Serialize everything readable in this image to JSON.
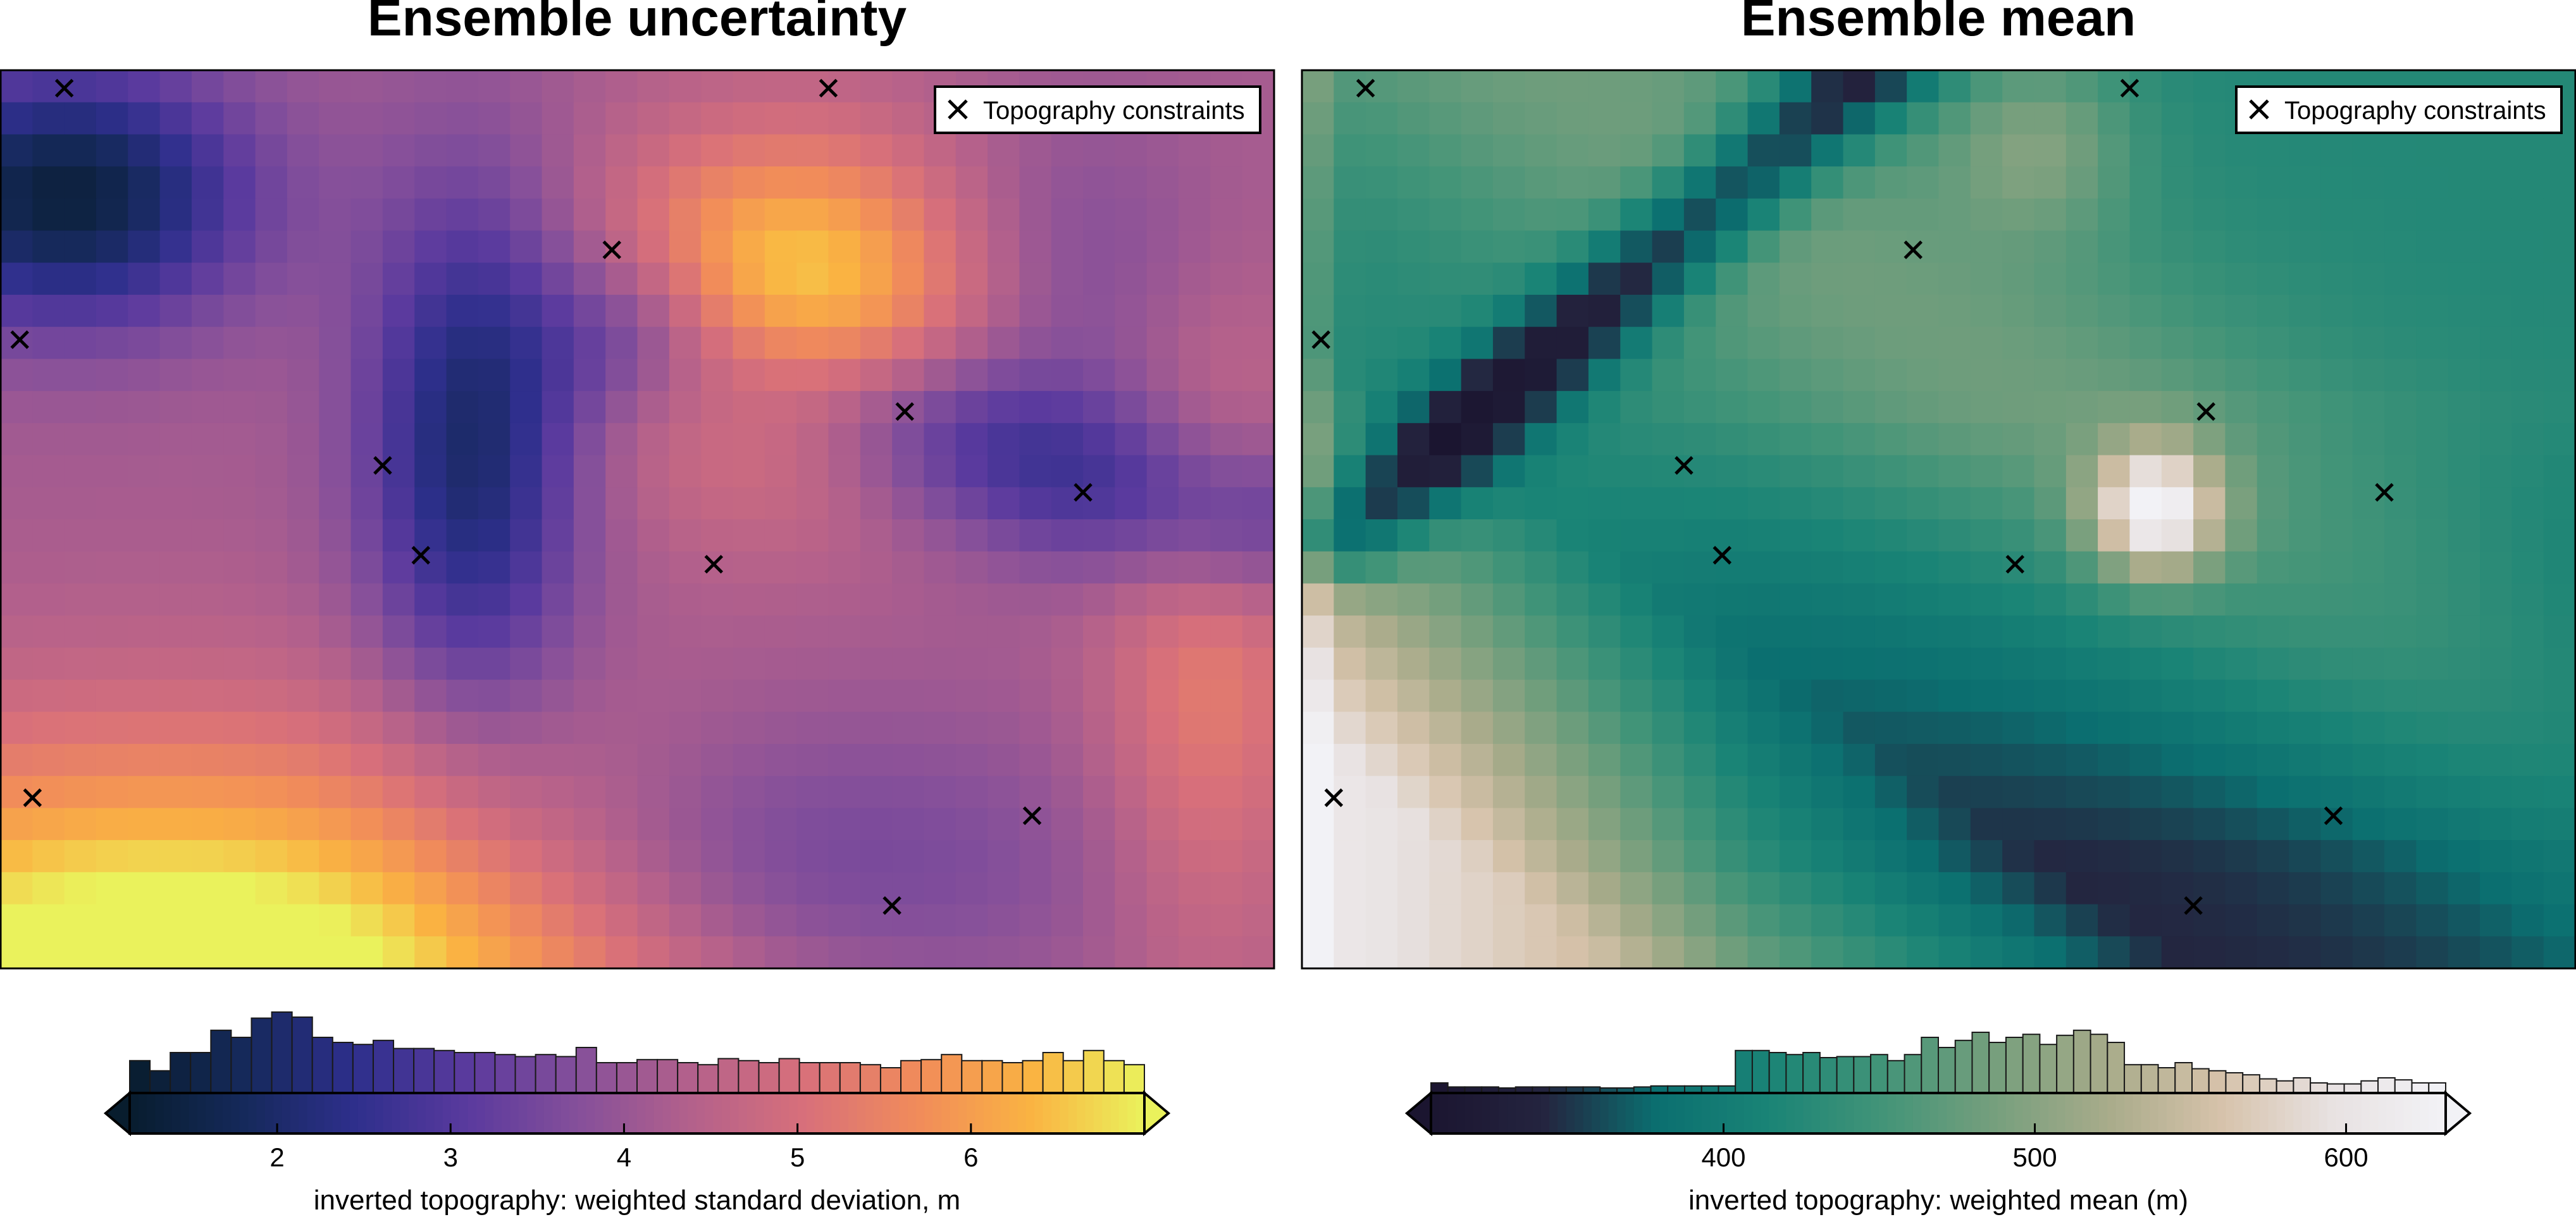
{
  "chart_data": [
    {
      "type": "heatmap",
      "title": "Ensemble uncertainty",
      "colormap": [
        "#081d2e",
        "#15295a",
        "#2e2f8c",
        "#5a3a9e",
        "#86509a",
        "#b4618b",
        "#d8707a",
        "#f18c5a",
        "#fab342",
        "#eaf25c"
      ],
      "colorbar": {
        "label": "inverted topography: weighted standard deviation, m",
        "vmin": 1.15,
        "vmax": 7.0,
        "ticks": [
          2,
          3,
          4,
          5,
          6
        ],
        "tick_labels": [
          "2",
          "3",
          "4",
          "5",
          "6"
        ],
        "histogram": [
          0.32,
          0.22,
          0.4,
          0.4,
          0.62,
          0.55,
          0.74,
          0.8,
          0.75,
          0.55,
          0.5,
          0.48,
          0.52,
          0.44,
          0.44,
          0.42,
          0.4,
          0.4,
          0.38,
          0.36,
          0.38,
          0.36,
          0.45,
          0.3,
          0.3,
          0.33,
          0.33,
          0.3,
          0.28,
          0.34,
          0.32,
          0.3,
          0.34,
          0.3,
          0.3,
          0.3,
          0.28,
          0.25,
          0.32,
          0.33,
          0.38,
          0.32,
          0.32,
          0.3,
          0.32,
          0.4,
          0.32,
          0.42,
          0.32,
          0.28
        ]
      },
      "legend": {
        "label": "Topography constraints",
        "position": "top-right"
      },
      "constraints": [
        [
          0.05,
          0.98
        ],
        [
          0.65,
          0.98
        ],
        [
          0.015,
          0.7
        ],
        [
          0.48,
          0.8
        ],
        [
          0.71,
          0.62
        ],
        [
          0.3,
          0.56
        ],
        [
          0.33,
          0.46
        ],
        [
          0.56,
          0.45
        ],
        [
          0.85,
          0.53
        ],
        [
          0.025,
          0.19
        ],
        [
          0.81,
          0.17
        ],
        [
          0.7,
          0.07
        ]
      ]
    },
    {
      "type": "heatmap",
      "title": "Ensemble mean",
      "colormap": [
        "#1b1530",
        "#24243f",
        "#0b6f70",
        "#1a8476",
        "#429478",
        "#769f7d",
        "#a8ab8a",
        "#d6c2aa",
        "#e8e2e2",
        "#f2f2f6"
      ],
      "colorbar": {
        "label": "inverted topography: weighted mean (m)",
        "vmin": 306,
        "vmax": 632,
        "ticks": [
          400,
          500,
          600
        ],
        "tick_labels": [
          "400",
          "500",
          "600"
        ],
        "histogram": [
          0.1,
          0.06,
          0.06,
          0.06,
          0.05,
          0.06,
          0.06,
          0.06,
          0.06,
          0.06,
          0.05,
          0.05,
          0.06,
          0.07,
          0.07,
          0.07,
          0.07,
          0.07,
          0.42,
          0.42,
          0.4,
          0.38,
          0.4,
          0.35,
          0.36,
          0.36,
          0.38,
          0.32,
          0.38,
          0.55,
          0.45,
          0.52,
          0.6,
          0.5,
          0.55,
          0.58,
          0.48,
          0.57,
          0.62,
          0.58,
          0.5,
          0.28,
          0.28,
          0.25,
          0.3,
          0.24,
          0.22,
          0.2,
          0.18,
          0.14,
          0.12,
          0.15,
          0.1,
          0.09,
          0.09,
          0.12,
          0.15,
          0.13,
          0.1,
          0.1
        ]
      },
      "legend": {
        "label": "Topography constraints",
        "position": "top-right"
      },
      "constraints": [
        [
          0.05,
          0.98
        ],
        [
          0.65,
          0.98
        ],
        [
          0.015,
          0.7
        ],
        [
          0.48,
          0.8
        ],
        [
          0.71,
          0.62
        ],
        [
          0.3,
          0.56
        ],
        [
          0.33,
          0.46
        ],
        [
          0.56,
          0.45
        ],
        [
          0.85,
          0.53
        ],
        [
          0.025,
          0.19
        ],
        [
          0.81,
          0.17
        ],
        [
          0.7,
          0.07
        ]
      ]
    }
  ]
}
